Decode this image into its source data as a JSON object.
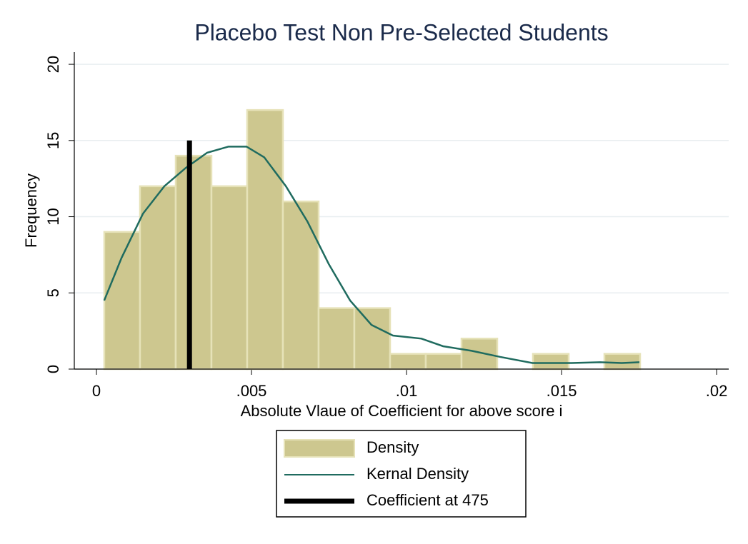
{
  "chart_data": {
    "type": "histogram",
    "title": "Placebo Test Non Pre-Selected Students",
    "x_label": "Absolute Vlaue of Coefficient for above score i",
    "y_label": "Frequency",
    "bins": [
      0.000253,
      0.001405,
      0.002557,
      0.003709,
      0.004861,
      0.006013,
      0.007165,
      0.008317,
      0.009469,
      0.010621,
      0.011773,
      0.012925,
      0.014077,
      0.015229,
      0.016381,
      0.017533
    ],
    "series": [
      {
        "name": "Density",
        "color": "#cdc78f",
        "values": [
          9,
          12,
          14,
          12,
          17,
          11,
          4,
          4,
          1,
          1,
          2,
          0,
          1,
          0,
          1
        ]
      },
      {
        "name": "Kernal Density",
        "color": "#1f6b5f",
        "x": [
          0.00025,
          0.00081,
          0.0015,
          0.00219,
          0.00288,
          0.00357,
          0.00426,
          0.00484,
          0.00541,
          0.00611,
          0.0068,
          0.00749,
          0.00818,
          0.00887,
          0.00956,
          0.01048,
          0.01118,
          0.0121,
          0.01302,
          0.01406,
          0.01532,
          0.01624,
          0.01694,
          0.01751
        ],
        "values": [
          4.5,
          7.3,
          10.2,
          12,
          13.2,
          14.2,
          14.6,
          14.6,
          13.9,
          12,
          9.7,
          6.9,
          4.5,
          2.9,
          2.2,
          2.0,
          1.5,
          1.2,
          0.8,
          0.4,
          0.4,
          0.45,
          0.4,
          0.45
        ]
      },
      {
        "name": "Coefficient at 475",
        "color": "#000000",
        "x": [
          0.003,
          0.003
        ],
        "values": [
          0,
          15
        ]
      }
    ],
    "xlim": [
      -0.000714,
      0.02039
    ],
    "ylim": [
      0,
      20.8
    ],
    "xticks": [
      0,
      {
        "value": 0.005,
        "label": ".005"
      },
      {
        "value": 0.01,
        "label": ".01"
      },
      {
        "value": 0.015,
        "label": ".015"
      },
      {
        "value": 0.02,
        "label": ".02"
      }
    ],
    "yticks": [
      0,
      5,
      10,
      15,
      20
    ],
    "grid": true,
    "legend": "bottom"
  }
}
